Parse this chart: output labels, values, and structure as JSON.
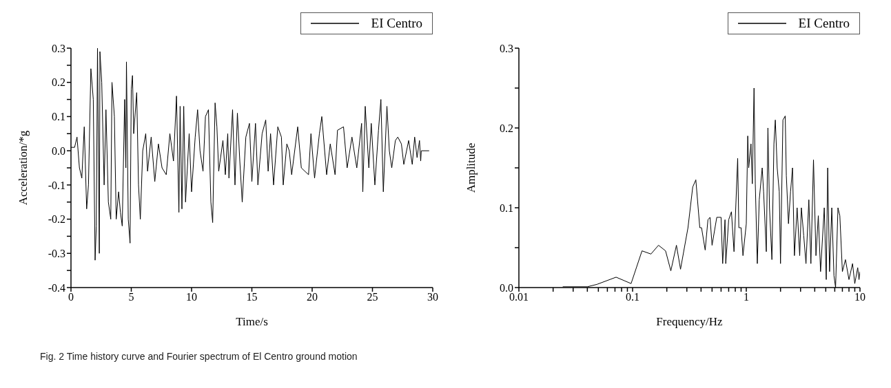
{
  "chart_data": [
    {
      "type": "line",
      "xlabel": "Time/s",
      "ylabel": "Acceleration/*g",
      "legend": "top right",
      "marker": "none",
      "line_style": "solid",
      "grid": false,
      "xlim": [
        0,
        30
      ],
      "xticks": [
        0,
        5,
        10,
        15,
        20,
        25,
        30
      ],
      "ylim": [
        -0.4,
        0.3
      ],
      "yticks": [
        {
          "value": -0.4,
          "label": "-0.4"
        },
        {
          "value": -0.35,
          "label": null
        },
        {
          "value": -0.3,
          "label": "-0.3"
        },
        {
          "value": -0.25,
          "label": null
        },
        {
          "value": -0.2,
          "label": "-0.2"
        },
        {
          "value": -0.15,
          "label": null
        },
        {
          "value": -0.1,
          "label": "-0.1"
        },
        {
          "value": -0.05,
          "label": null
        },
        {
          "value": 0,
          "label": "0.0"
        },
        {
          "value": 0.05,
          "label": null
        },
        {
          "value": 0.1,
          "label": "0.1"
        },
        {
          "value": 0.15,
          "label": null
        },
        {
          "value": 0.2,
          "label": "0.2"
        },
        {
          "value": 0.25,
          "label": null
        },
        {
          "value": 0.3,
          "label": "0.3"
        }
      ],
      "series": [
        {
          "name": "EI Centro",
          "color": "#000000",
          "x": [
            0,
            0.3,
            0.5,
            0.7,
            0.9,
            1.1,
            1.3,
            1.45,
            1.65,
            1.85,
            2.0,
            2.1,
            2.2,
            2.35,
            2.4,
            2.55,
            2.75,
            2.9,
            3.1,
            3.3,
            3.4,
            3.6,
            3.75,
            3.95,
            4.1,
            4.25,
            4.45,
            4.55,
            4.6,
            4.75,
            4.9,
            5.0,
            5.1,
            5.2,
            5.45,
            5.6,
            5.75,
            5.95,
            6.2,
            6.35,
            6.65,
            6.95,
            7.25,
            7.55,
            7.9,
            8.2,
            8.5,
            8.75,
            8.95,
            9.05,
            9.2,
            9.35,
            9.5,
            9.8,
            10.0,
            10.3,
            10.5,
            10.7,
            10.95,
            11.15,
            11.4,
            11.6,
            11.75,
            11.95,
            12.1,
            12.25,
            12.6,
            12.8,
            13.0,
            13.1,
            13.4,
            13.6,
            13.8,
            14.0,
            14.2,
            14.5,
            14.8,
            15.0,
            15.3,
            15.5,
            15.85,
            16.15,
            16.35,
            16.55,
            16.8,
            17.15,
            17.45,
            17.6,
            17.9,
            18.1,
            18.3,
            18.8,
            19.1,
            19.7,
            19.9,
            20.2,
            20.6,
            20.8,
            21.2,
            21.5,
            21.9,
            22.1,
            22.6,
            22.9,
            23.3,
            23.7,
            24.1,
            24.2,
            24.4,
            24.7,
            24.9,
            25.2,
            25.5,
            25.7,
            25.9,
            26.2,
            26.4,
            26.6,
            26.9,
            27.1,
            27.4,
            27.6,
            28.0,
            28.3,
            28.5,
            28.7,
            28.9,
            29.0,
            29.05,
            29.7
          ],
          "values": [
            0.01,
            0.01,
            0.04,
            -0.05,
            -0.08,
            0.07,
            -0.17,
            -0.1,
            0.24,
            0.15,
            -0.32,
            -0.22,
            0.3,
            -0.3,
            0.29,
            0.2,
            -0.1,
            0.12,
            -0.15,
            -0.2,
            0.2,
            0.1,
            -0.2,
            -0.12,
            -0.18,
            -0.22,
            0.15,
            -0.05,
            0.26,
            -0.2,
            -0.27,
            0.18,
            0.22,
            0.05,
            0.17,
            -0.1,
            -0.2,
            0.0,
            0.05,
            -0.06,
            0.04,
            -0.09,
            0.02,
            -0.05,
            -0.07,
            0.05,
            -0.03,
            0.16,
            -0.18,
            0.13,
            -0.17,
            0.13,
            -0.15,
            0.05,
            -0.12,
            0.04,
            0.12,
            0.0,
            -0.06,
            0.1,
            0.12,
            -0.15,
            -0.21,
            0.14,
            0.07,
            -0.06,
            0.03,
            -0.07,
            0.05,
            -0.08,
            0.12,
            -0.1,
            0.11,
            -0.03,
            -0.15,
            0.04,
            0.08,
            -0.09,
            0.08,
            -0.1,
            0.05,
            0.09,
            -0.06,
            0.05,
            -0.1,
            0.07,
            0.04,
            -0.1,
            0.02,
            0.0,
            -0.07,
            0.07,
            -0.05,
            -0.07,
            0.05,
            -0.08,
            0.05,
            0.1,
            -0.07,
            0.02,
            -0.07,
            0.06,
            0.07,
            -0.05,
            0.04,
            -0.05,
            0.08,
            -0.12,
            0.13,
            -0.05,
            0.08,
            -0.1,
            0.06,
            0.15,
            -0.12,
            0.13,
            0.0,
            -0.05,
            0.03,
            0.04,
            0.02,
            -0.04,
            0.03,
            -0.04,
            0.04,
            -0.02,
            0.03,
            -0.03,
            0.0,
            0.0
          ]
        }
      ]
    },
    {
      "type": "line",
      "xlabel": "Frequency/Hz",
      "ylabel": "Amplitude",
      "legend": "top right",
      "marker": "none",
      "line_style": "solid",
      "grid": false,
      "log": "x",
      "xlim": [
        0.01,
        10
      ],
      "xticks": [
        0.01,
        {
          "value": 0.02,
          "label": null
        },
        {
          "value": 0.03,
          "label": null
        },
        {
          "value": 0.04,
          "label": null
        },
        {
          "value": 0.05,
          "label": null
        },
        {
          "value": 0.06,
          "label": null
        },
        {
          "value": 0.07,
          "label": null
        },
        {
          "value": 0.08,
          "label": null
        },
        {
          "value": 0.09,
          "label": null
        },
        0.1,
        {
          "value": 0.2,
          "label": null
        },
        {
          "value": 0.3,
          "label": null
        },
        {
          "value": 0.4,
          "label": null
        },
        {
          "value": 0.5,
          "label": null
        },
        {
          "value": 0.6,
          "label": null
        },
        {
          "value": 0.7,
          "label": null
        },
        {
          "value": 0.8,
          "label": null
        },
        {
          "value": 0.9,
          "label": null
        },
        1,
        {
          "value": 2,
          "label": null
        },
        {
          "value": 3,
          "label": null
        },
        {
          "value": 4,
          "label": null
        },
        {
          "value": 5,
          "label": null
        },
        {
          "value": 6,
          "label": null
        },
        {
          "value": 7,
          "label": null
        },
        {
          "value": 8,
          "label": null
        },
        {
          "value": 9,
          "label": null
        },
        10
      ],
      "ylim": [
        0,
        0.3
      ],
      "yticks": [
        {
          "value": 0,
          "label": "0.0"
        },
        {
          "value": 0.05,
          "label": null
        },
        0.1,
        {
          "value": 0.15,
          "label": null
        },
        0.2,
        {
          "value": 0.25,
          "label": null
        },
        0.3
      ],
      "series": [
        {
          "name": "EI Centro",
          "color": "#000000",
          "x": [
            0.0243,
            0.04,
            0.0486,
            0.0716,
            0.097,
            0.121,
            0.145,
            0.169,
            0.195,
            0.217,
            0.243,
            0.264,
            0.307,
            0.338,
            0.36,
            0.39,
            0.404,
            0.435,
            0.46,
            0.48,
            0.5,
            0.55,
            0.6,
            0.62,
            0.65,
            0.66,
            0.7,
            0.74,
            0.78,
            0.84,
            0.86,
            0.9,
            0.935,
            1.0,
            1.03,
            1.05,
            1.1,
            1.13,
            1.17,
            1.2,
            1.25,
            1.3,
            1.38,
            1.42,
            1.5,
            1.55,
            1.6,
            1.68,
            1.75,
            1.8,
            1.87,
            1.95,
            2.0,
            2.1,
            2.2,
            2.25,
            2.35,
            2.45,
            2.55,
            2.65,
            2.8,
            2.95,
            3.05,
            3.2,
            3.35,
            3.55,
            3.7,
            3.9,
            4.1,
            4.3,
            4.5,
            4.85,
            5.05,
            5.2,
            5.4,
            5.65,
            5.9,
            6.1,
            6.4,
            6.65,
            7.0,
            7.45,
            8.0,
            8.6,
            9.0,
            9.55,
            9.8,
            10.0
          ],
          "values": [
            0.001,
            0.001,
            0.004,
            0.013,
            0.005,
            0.046,
            0.042,
            0.053,
            0.046,
            0.021,
            0.053,
            0.023,
            0.075,
            0.126,
            0.135,
            0.075,
            0.075,
            0.047,
            0.085,
            0.088,
            0.053,
            0.088,
            0.088,
            0.03,
            0.085,
            0.03,
            0.085,
            0.095,
            0.045,
            0.162,
            0.075,
            0.075,
            0.04,
            0.08,
            0.19,
            0.15,
            0.18,
            0.13,
            0.25,
            0.13,
            0.03,
            0.11,
            0.15,
            0.12,
            0.045,
            0.2,
            0.1,
            0.035,
            0.18,
            0.21,
            0.15,
            0.12,
            0.03,
            0.21,
            0.215,
            0.14,
            0.08,
            0.12,
            0.15,
            0.04,
            0.1,
            0.04,
            0.1,
            0.065,
            0.03,
            0.11,
            0.03,
            0.16,
            0.04,
            0.09,
            0.02,
            0.1,
            0.01,
            0.15,
            0.02,
            0.1,
            0.015,
            0.0,
            0.1,
            0.09,
            0.02,
            0.035,
            0.01,
            0.03,
            0.005,
            0.025,
            0.01,
            0.02
          ]
        }
      ],
      "annotations": [
        "Fig. 2  Time history curve and Fourier spectrum of El Centro ground motion"
      ]
    }
  ]
}
